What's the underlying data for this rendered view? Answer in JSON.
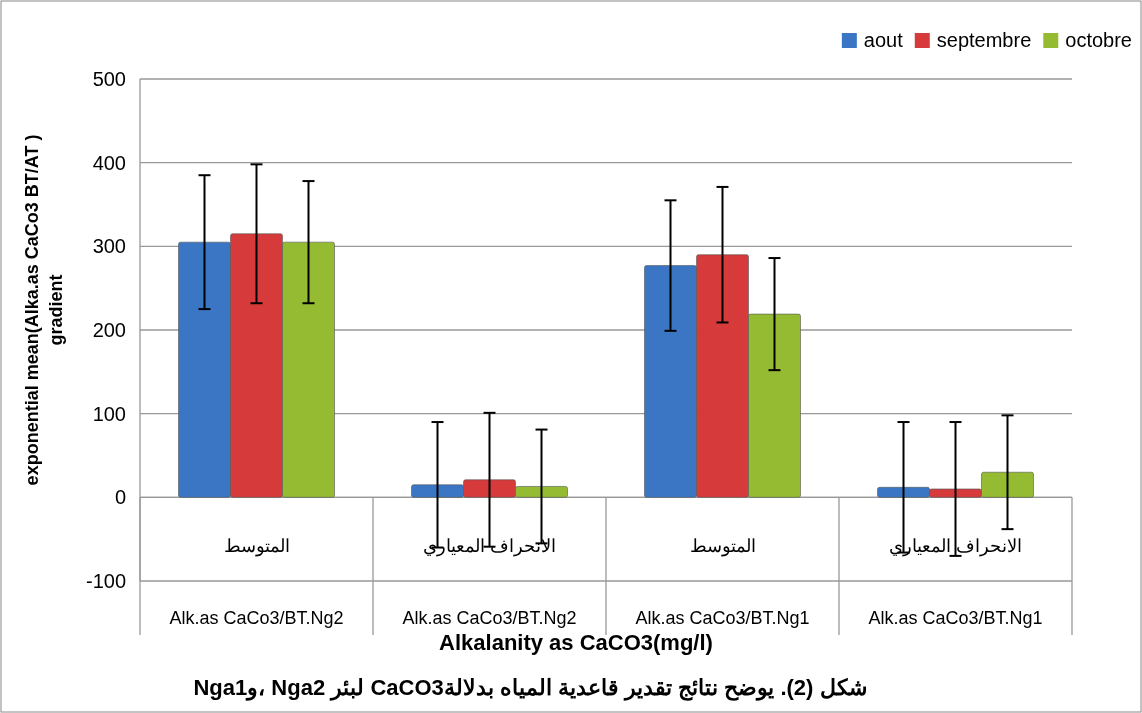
{
  "chart_data": {
    "type": "bar",
    "categories": [
      "المتوسط\nAlk.as CaCo3/BT.Ng2",
      "الانحراف المعياري\nAlk.as CaCo3/BT.Ng2",
      "المتوسط\nAlk.as CaCo3/BT.Ng1",
      "الانحراف المعياري\nAlk.as CaCo3/BT.Ng1"
    ],
    "series": [
      {
        "name": "aout",
        "color": "#3a76c4",
        "values": [
          305,
          15,
          277,
          12
        ],
        "errors": [
          80,
          75,
          78,
          78
        ]
      },
      {
        "name": "septembre",
        "color": "#d63a3a",
        "values": [
          315,
          21,
          290,
          10
        ],
        "errors": [
          83,
          80,
          81,
          80
        ]
      },
      {
        "name": "octobre",
        "color": "#94bb32",
        "values": [
          305,
          13,
          219,
          30
        ],
        "errors": [
          73,
          68,
          67,
          68
        ]
      }
    ],
    "ylabel": "exponential mean(Alka.as CaCo3 BT/AT )\ngradient",
    "xlabel": "Alkalanity as CaCO3(mg/l)",
    "annotations": [
      "شكل (2). يوضح نتائج تقدير قاعدية المياه بدلالةCaCO3 لبئر Nga2 ،وNga1"
    ],
    "ylim": [
      -100,
      500
    ],
    "yticks": [
      -100,
      0,
      100,
      200,
      300,
      400,
      500
    ],
    "grid": "y",
    "legend": "top right"
  }
}
